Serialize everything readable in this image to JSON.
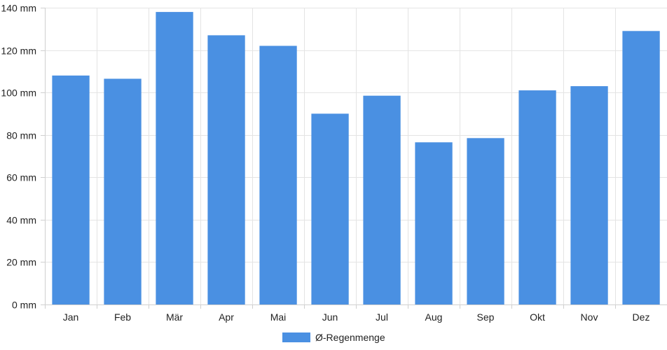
{
  "chart_data": {
    "type": "bar",
    "categories": [
      "Jan",
      "Feb",
      "Mär",
      "Apr",
      "Mai",
      "Jun",
      "Jul",
      "Aug",
      "Sep",
      "Okt",
      "Nov",
      "Dez"
    ],
    "series": [
      {
        "name": "Ø-Regenmenge",
        "color": "#4a90e2",
        "values": [
          108,
          106.5,
          138,
          127,
          122,
          90,
          98.5,
          76.5,
          78.5,
          101,
          103,
          129
        ]
      }
    ],
    "y_unit": "mm",
    "ylim": [
      0,
      140
    ],
    "y_ticks": [
      0,
      20,
      40,
      60,
      80,
      100,
      120,
      140
    ],
    "y_tick_labels": [
      "0 mm",
      "20 mm",
      "40 mm",
      "60 mm",
      "80 mm",
      "100 mm",
      "120 mm",
      "140 mm"
    ],
    "grid": true,
    "legend": {
      "position": "bottom",
      "label": "Ø-Regenmenge"
    }
  }
}
